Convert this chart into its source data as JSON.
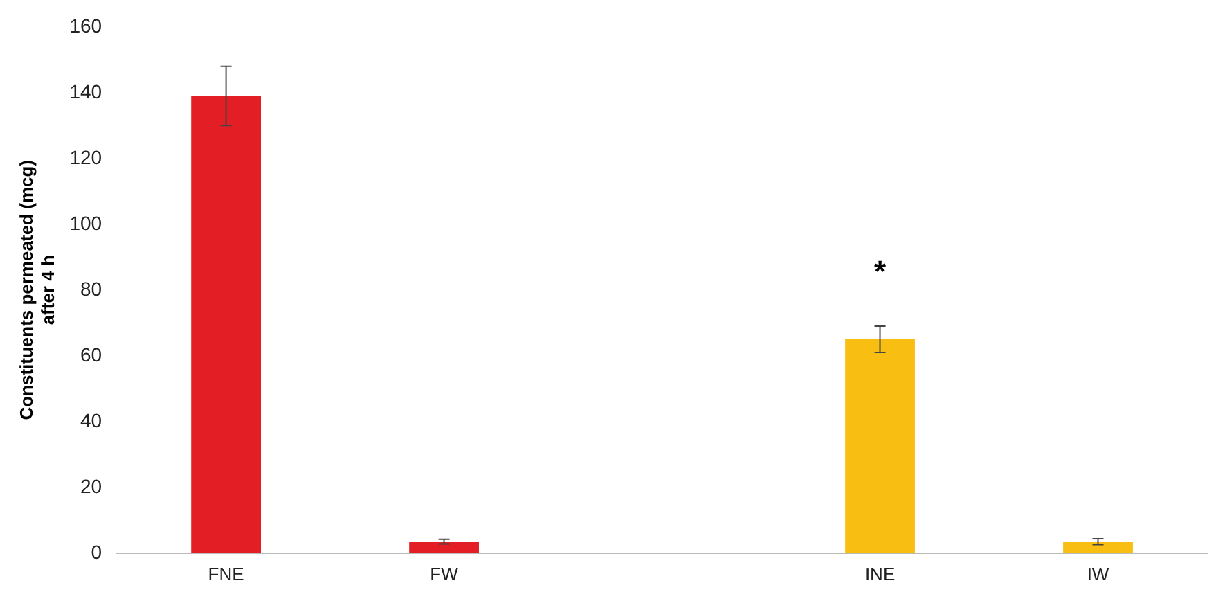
{
  "chart_data": {
    "type": "bar",
    "ylabel": "Constituents permeated (mcg) after 4 h",
    "categories": [
      "FNE",
      "FW",
      null,
      "INE",
      "IW"
    ],
    "values": [
      139,
      3.5,
      null,
      65,
      3.5
    ],
    "colors": [
      "#e31e24",
      "#e31e24",
      null,
      "#f9be12",
      "#f9be12"
    ],
    "errors": [
      9,
      0.7,
      null,
      4,
      0.9
    ],
    "ylim": [
      0,
      160
    ],
    "yticks": [
      0,
      20,
      40,
      60,
      80,
      100,
      120,
      140,
      160
    ],
    "grid": false,
    "legend": false,
    "annotations": [
      {
        "text": "*",
        "x": "INE",
        "y": 69
      }
    ]
  }
}
